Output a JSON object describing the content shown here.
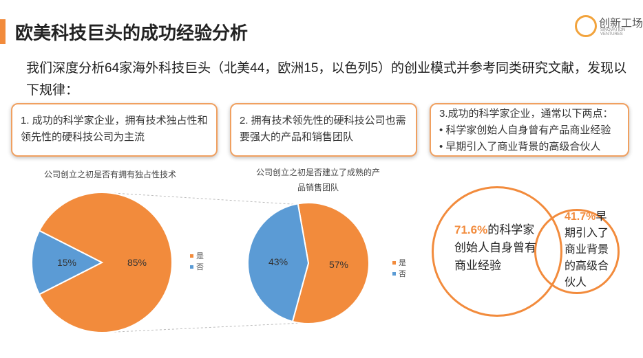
{
  "header": {
    "title": "欧美科技巨头的成功经验分析",
    "logo": "创新工场",
    "logo_sub": "SINOVATION VENTURES"
  },
  "intro": "我们深度分析64家海外科技巨头（北美44，欧洲15，以色列5）的创业模式并参考同类研究文献，发现以下规律：",
  "boxes": [
    {
      "text": "1. 成功的科学家企业，拥有技术独占性和领先性的硬科技公司为主流"
    },
    {
      "text": "2. 拥有技术领先性的硬科技公司也需要强大的产品和销售团队"
    },
    {
      "title": "3.成功的科学家企业，通常以下两点：",
      "bullets": [
        "• 科学家创始人自身曾有产品商业经验",
        "• 早期引入了商业背景的高级合伙人"
      ]
    }
  ],
  "chart_data": [
    {
      "type": "pie",
      "title": "公司创立之初是否有拥有独占性技术",
      "categories": [
        "是",
        "否"
      ],
      "values": [
        85,
        15
      ],
      "value_labels": [
        "85%",
        "15%"
      ],
      "colors": [
        "#f28b3c",
        "#5b9bd5"
      ]
    },
    {
      "type": "pie",
      "title": "公司创立之初是否建立了成熟的产品销售团队",
      "categories": [
        "是",
        "否"
      ],
      "values": [
        57,
        43
      ],
      "value_labels": [
        "57%",
        "43%"
      ],
      "colors": [
        "#f28b3c",
        "#5b9bd5"
      ]
    }
  ],
  "circles": [
    {
      "highlight": "71.6%",
      "text": "的科学家创始人自身曾有商业经验"
    },
    {
      "highlight": "41.7%",
      "text": "早期引入了商业背景的高级合伙人"
    }
  ]
}
